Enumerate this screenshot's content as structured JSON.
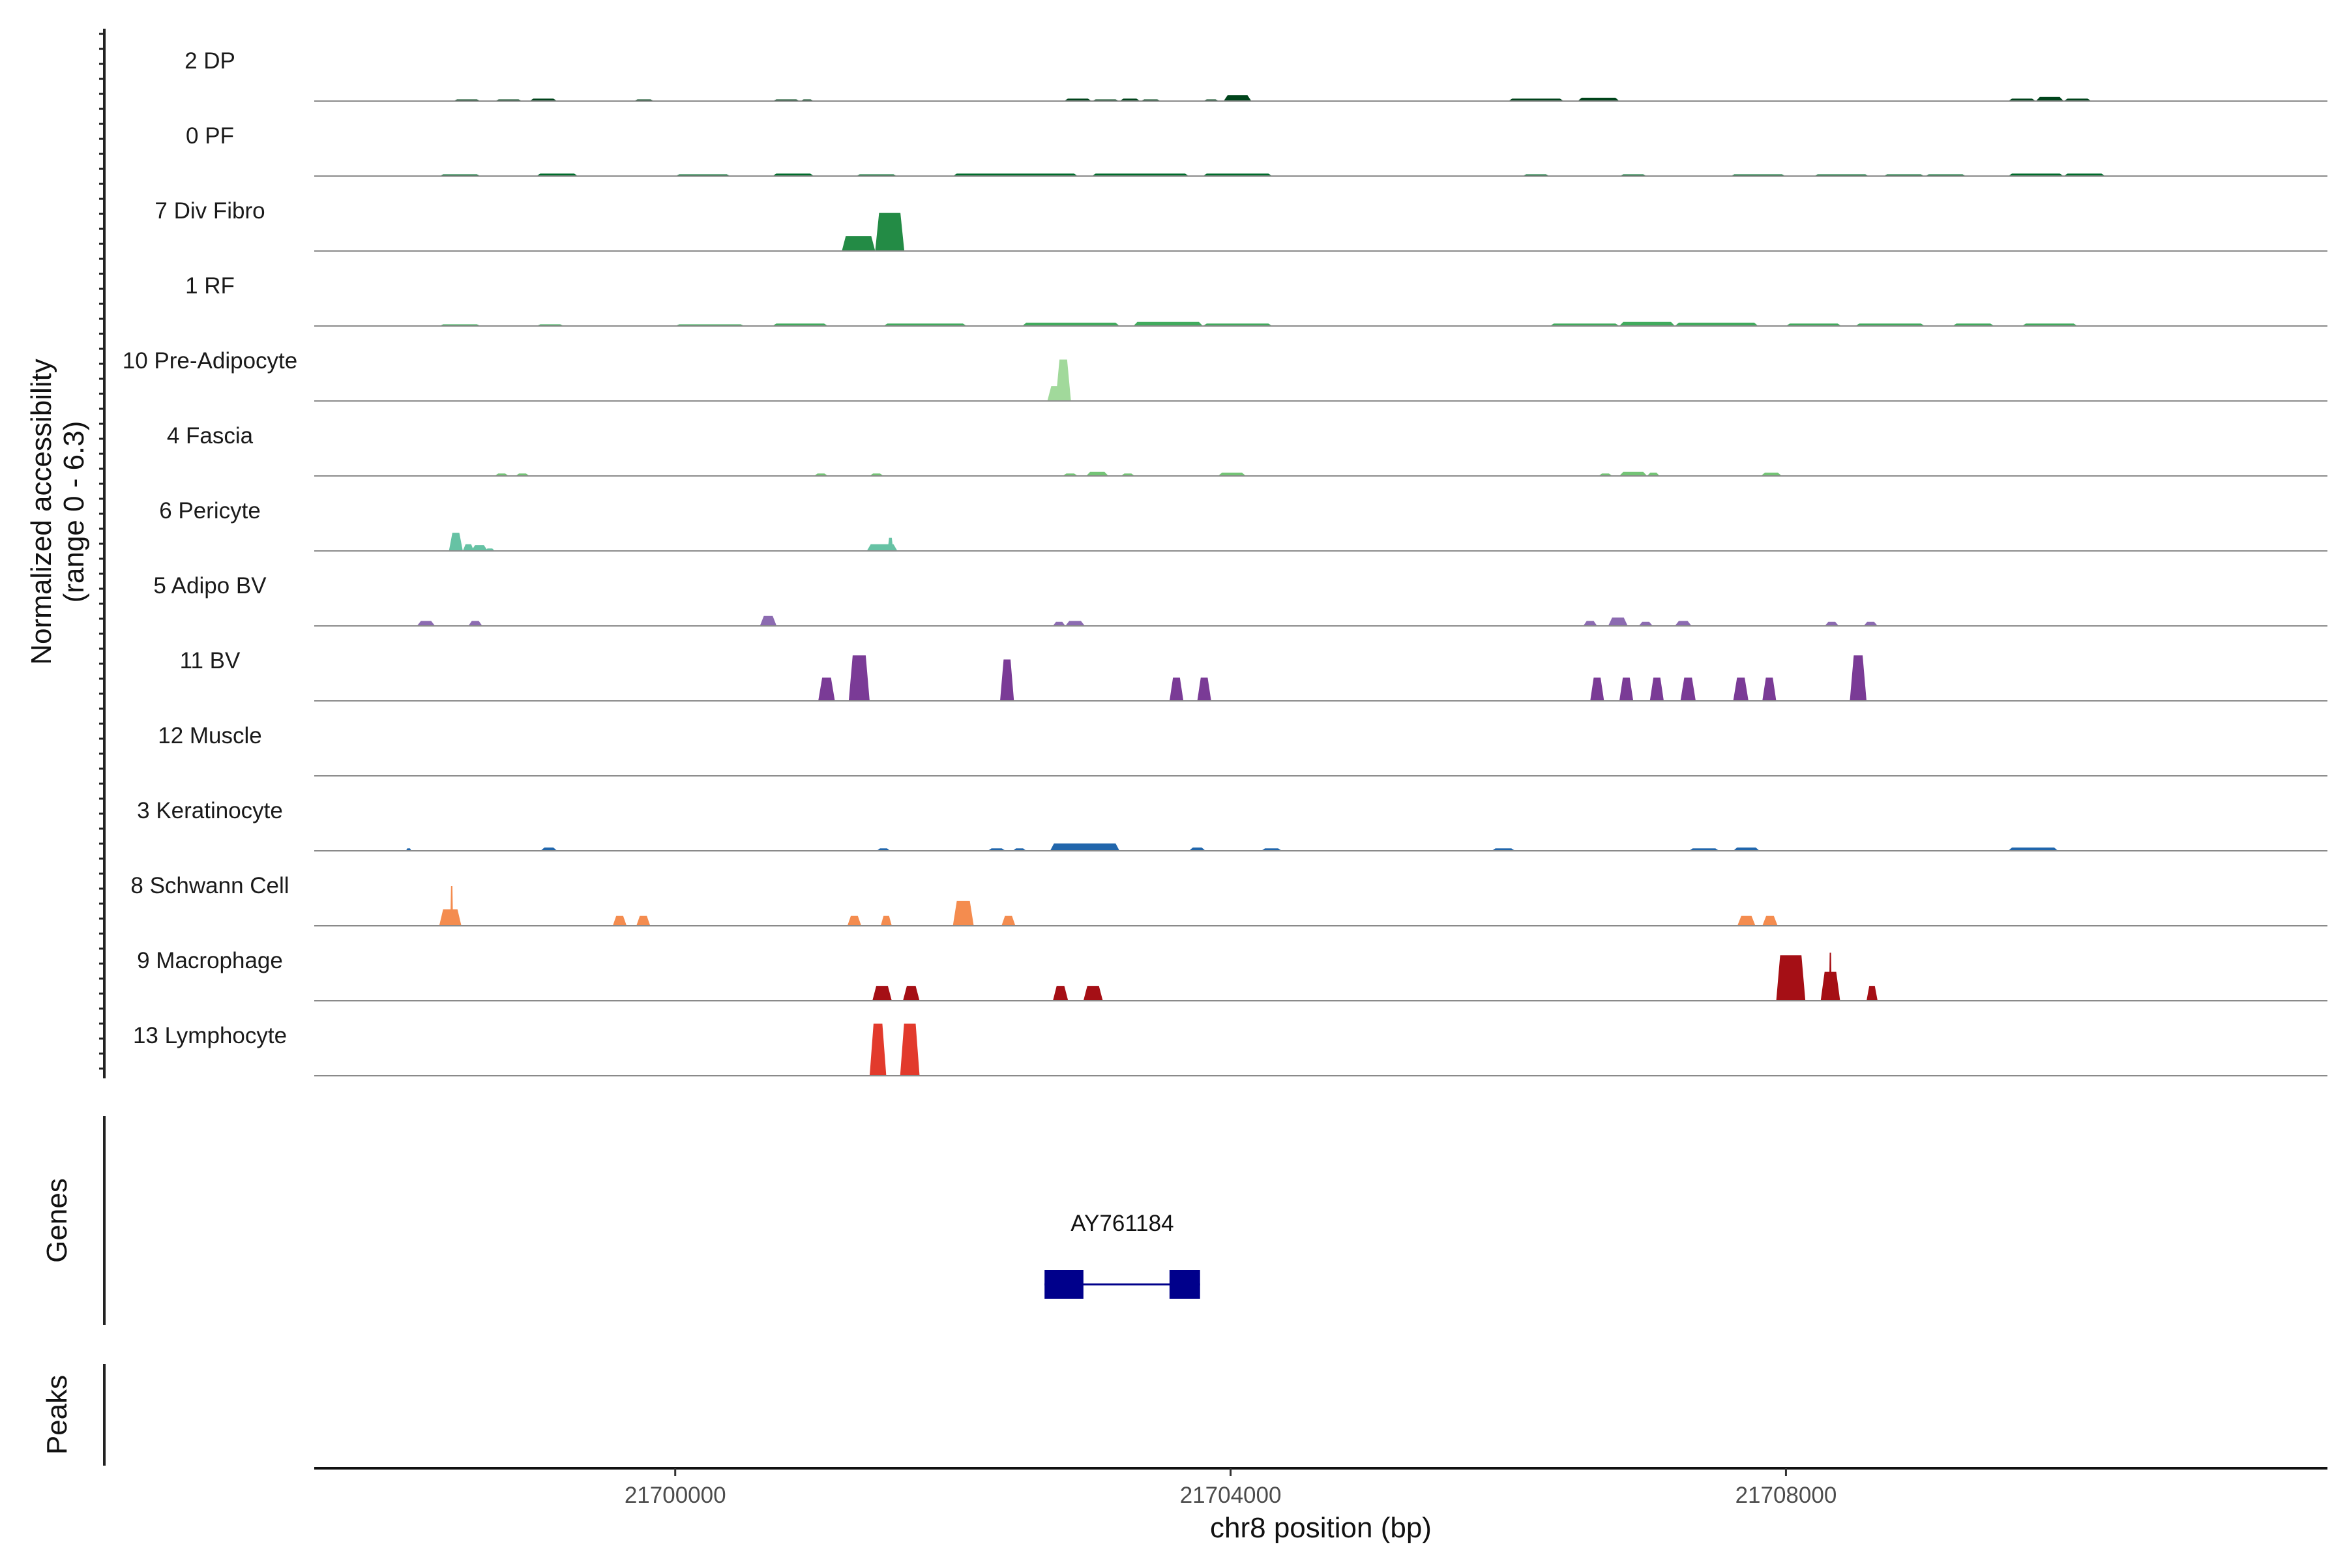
{
  "chart_data": {
    "type": "area",
    "kind": "genome coverage track plot",
    "ylabel_line1": "Normalized accessibility",
    "ylabel_line2": "(range 0 - 6.3)",
    "xlabel": "chr8 position (bp)",
    "xlim": [
      21697400,
      21711900
    ],
    "ymax": 6.3,
    "x_ticks": [
      {
        "value": 21700000,
        "label": "21700000"
      },
      {
        "value": 21704000,
        "label": "21704000"
      },
      {
        "value": 21708000,
        "label": "21708000"
      }
    ],
    "tracks": [
      {
        "name": "2 DP",
        "color": "#00441b",
        "peaks": [
          [
            21698400,
            21698600,
            0.2
          ],
          [
            21698700,
            21698900,
            0.2
          ],
          [
            21698950,
            21699150,
            0.3
          ],
          [
            21699700,
            21699850,
            0.2
          ],
          [
            21700700,
            21700900,
            0.2
          ],
          [
            21700900,
            21701000,
            0.2
          ],
          [
            21702800,
            21703000,
            0.3
          ],
          [
            21703000,
            21703200,
            0.2
          ],
          [
            21703200,
            21703350,
            0.3
          ],
          [
            21703350,
            21703500,
            0.2
          ],
          [
            21703950,
            21704150,
            0.7
          ],
          [
            21703800,
            21703920,
            0.2
          ],
          [
            21706000,
            21706400,
            0.3
          ],
          [
            21706500,
            21706800,
            0.4
          ],
          [
            21709600,
            21709800,
            0.3
          ],
          [
            21709800,
            21710000,
            0.5
          ],
          [
            21710000,
            21710200,
            0.3
          ]
        ]
      },
      {
        "name": "0 PF",
        "color": "#006d2c",
        "peaks": [
          [
            21698300,
            21698600,
            0.2
          ],
          [
            21699000,
            21699300,
            0.3
          ],
          [
            21700000,
            21700400,
            0.2
          ],
          [
            21700700,
            21701000,
            0.3
          ],
          [
            21701300,
            21701600,
            0.2
          ],
          [
            21702000,
            21702900,
            0.3
          ],
          [
            21703000,
            21703700,
            0.3
          ],
          [
            21703800,
            21704300,
            0.3
          ],
          [
            21706100,
            21706300,
            0.2
          ],
          [
            21706800,
            21707000,
            0.2
          ],
          [
            21707600,
            21708000,
            0.2
          ],
          [
            21708200,
            21708600,
            0.2
          ],
          [
            21708700,
            21709000,
            0.2
          ],
          [
            21709000,
            21709300,
            0.2
          ],
          [
            21709600,
            21710000,
            0.3
          ],
          [
            21710000,
            21710300,
            0.3
          ]
        ]
      },
      {
        "name": "7 Div Fibro",
        "color": "#238b45",
        "peaks": [
          [
            21701200,
            21701440,
            1.8
          ],
          [
            21701440,
            21701650,
            4.6
          ]
        ]
      },
      {
        "name": "1 RF",
        "color": "#41ab5d",
        "peaks": [
          [
            21698300,
            21698600,
            0.2
          ],
          [
            21699000,
            21699200,
            0.2
          ],
          [
            21700000,
            21700500,
            0.2
          ],
          [
            21700700,
            21701100,
            0.3
          ],
          [
            21701500,
            21702100,
            0.3
          ],
          [
            21702500,
            21703200,
            0.4
          ],
          [
            21703300,
            21703800,
            0.5
          ],
          [
            21703800,
            21704300,
            0.3
          ],
          [
            21706300,
            21706800,
            0.3
          ],
          [
            21706800,
            21707200,
            0.5
          ],
          [
            21707200,
            21707800,
            0.4
          ],
          [
            21708000,
            21708400,
            0.3
          ],
          [
            21708500,
            21709000,
            0.3
          ],
          [
            21709200,
            21709500,
            0.3
          ],
          [
            21709700,
            21710100,
            0.3
          ]
        ]
      },
      {
        "name": "10 Pre-Adipocyte",
        "color": "#a1d99b",
        "peaks": [
          [
            21702680,
            21702800,
            1.8
          ],
          [
            21702740,
            21702850,
            5.0
          ]
        ]
      },
      {
        "name": "4 Fascia",
        "color": "#74c476",
        "peaks": [
          [
            21698700,
            21698800,
            0.3
          ],
          [
            21698850,
            21698950,
            0.3
          ],
          [
            21701000,
            21701100,
            0.3
          ],
          [
            21701400,
            21701500,
            0.3
          ],
          [
            21702790,
            21702900,
            0.3
          ],
          [
            21702960,
            21703120,
            0.5
          ],
          [
            21703210,
            21703310,
            0.3
          ],
          [
            21703910,
            21704110,
            0.4
          ],
          [
            21706650,
            21706750,
            0.3
          ],
          [
            21706800,
            21707000,
            0.5
          ],
          [
            21707000,
            21707090,
            0.4
          ],
          [
            21707820,
            21707970,
            0.4
          ]
        ]
      },
      {
        "name": "6 Pericyte",
        "color": "#66c2a4",
        "peaks": [
          [
            21698370,
            21698470,
            2.2
          ],
          [
            21698470,
            21698550,
            0.8
          ],
          [
            21698530,
            21698650,
            0.7
          ],
          [
            21698630,
            21698700,
            0.3
          ],
          [
            21701380,
            21701600,
            0.8
          ],
          [
            21701530,
            21701570,
            1.6
          ]
        ]
      },
      {
        "name": "5 Adipo BV",
        "color": "#8c6bb1",
        "peaks": [
          [
            21698140,
            21698270,
            0.6
          ],
          [
            21698510,
            21698610,
            0.6
          ],
          [
            21700610,
            21700730,
            1.2
          ],
          [
            21702720,
            21702810,
            0.5
          ],
          [
            21702810,
            21702950,
            0.6
          ],
          [
            21706540,
            21706640,
            0.6
          ],
          [
            21706720,
            21706860,
            1.0
          ],
          [
            21706940,
            21707040,
            0.5
          ],
          [
            21707200,
            21707320,
            0.6
          ],
          [
            21708280,
            21708380,
            0.5
          ],
          [
            21708560,
            21708660,
            0.5
          ]
        ]
      },
      {
        "name": "11 BV",
        "color": "#7a3b96",
        "peaks": [
          [
            21701030,
            21701150,
            2.8
          ],
          [
            21701250,
            21701400,
            5.5
          ],
          [
            21701300,
            21701400,
            3.0
          ],
          [
            21702340,
            21702440,
            5.0
          ],
          [
            21703560,
            21703660,
            2.8
          ],
          [
            21703760,
            21703860,
            2.8
          ],
          [
            21706590,
            21706690,
            2.8
          ],
          [
            21706800,
            21706900,
            2.8
          ],
          [
            21707020,
            21707120,
            2.8
          ],
          [
            21707240,
            21707350,
            2.8
          ],
          [
            21707620,
            21707730,
            2.8
          ],
          [
            21707830,
            21707930,
            2.8
          ],
          [
            21708460,
            21708580,
            5.5
          ]
        ]
      },
      {
        "name": "12 Muscle",
        "color": "#6a51a3",
        "peaks": []
      },
      {
        "name": "3 Keratinocyte",
        "color": "#2166ac",
        "peaks": [
          [
            21698060,
            21698100,
            0.3
          ],
          [
            21699030,
            21699150,
            0.4
          ],
          [
            21701450,
            21701550,
            0.3
          ],
          [
            21702250,
            21702380,
            0.3
          ],
          [
            21702430,
            21702530,
            0.3
          ],
          [
            21702700,
            21703200,
            0.9
          ],
          [
            21703700,
            21703820,
            0.4
          ],
          [
            21704220,
            21704370,
            0.3
          ],
          [
            21705880,
            21706050,
            0.3
          ],
          [
            21707300,
            21707520,
            0.3
          ],
          [
            21707620,
            21707810,
            0.4
          ],
          [
            21709600,
            21709960,
            0.4
          ]
        ]
      },
      {
        "name": "8 Schwann Cell",
        "color": "#f48c4f",
        "peaks": [
          [
            21698300,
            21698460,
            2.0
          ],
          [
            21698380,
            21698400,
            4.8
          ],
          [
            21699550,
            21699650,
            1.2
          ],
          [
            21699720,
            21699820,
            1.2
          ],
          [
            21701240,
            21701340,
            1.2
          ],
          [
            21701480,
            21701560,
            1.2
          ],
          [
            21702000,
            21702150,
            3.0
          ],
          [
            21702350,
            21702450,
            1.2
          ],
          [
            21707650,
            21707780,
            1.2
          ],
          [
            21707830,
            21707940,
            1.2
          ]
        ]
      },
      {
        "name": "9 Macrophage",
        "color": "#a50f15",
        "peaks": [
          [
            21701420,
            21701560,
            1.8
          ],
          [
            21701640,
            21701760,
            1.8
          ],
          [
            21702720,
            21702830,
            1.8
          ],
          [
            21702940,
            21703080,
            1.8
          ],
          [
            21707930,
            21708140,
            5.5
          ],
          [
            21708250,
            21708390,
            3.5
          ],
          [
            21708310,
            21708330,
            5.8
          ],
          [
            21708580,
            21708660,
            1.8
          ]
        ]
      },
      {
        "name": "13 Lymphocyte",
        "color": "#e23a2c",
        "peaks": [
          [
            21701400,
            21701520,
            6.3
          ],
          [
            21701620,
            21701760,
            6.3
          ]
        ]
      }
    ],
    "genes": [
      {
        "name": "AY761184",
        "start": 21702660,
        "end": 21703780,
        "exons": [
          [
            21702660,
            21702940
          ],
          [
            21703560,
            21703780
          ]
        ],
        "color": "#00008b"
      }
    ],
    "genes_label": "Genes",
    "peaks_label": "Peaks"
  }
}
